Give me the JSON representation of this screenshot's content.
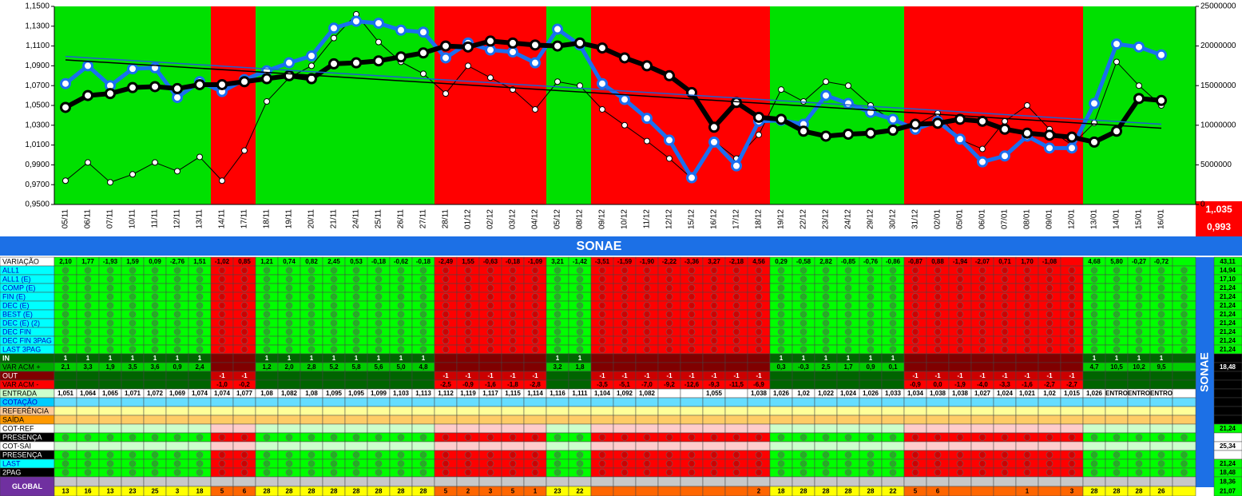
{
  "chart_data": {
    "type": "line",
    "categories": [
      "05/11",
      "06/11",
      "07/11",
      "10/11",
      "11/11",
      "12/11",
      "13/11",
      "14/11",
      "17/11",
      "18/11",
      "19/11",
      "20/11",
      "21/11",
      "24/11",
      "25/11",
      "26/11",
      "27/11",
      "28/11",
      "01/12",
      "02/12",
      "03/12",
      "04/12",
      "05/12",
      "08/12",
      "09/12",
      "10/12",
      "11/12",
      "12/12",
      "15/12",
      "16/12",
      "17/12",
      "18/12",
      "19/12",
      "22/12",
      "23/12",
      "24/12",
      "29/12",
      "30/12",
      "31/12",
      "02/01",
      "05/01",
      "06/01",
      "07/01",
      "08/01",
      "09/01",
      "12/01",
      "13/01",
      "14/01",
      "15/01",
      "16/01"
    ],
    "ylim": [
      0.95,
      1.15
    ],
    "yticks": [
      {
        "value": 0.95,
        "label": "0,9500"
      },
      {
        "value": 0.97,
        "label": "0,9700"
      },
      {
        "value": 0.99,
        "label": "0,9900"
      },
      {
        "value": 1.01,
        "label": "1,0100"
      },
      {
        "value": 1.03,
        "label": "1,0300"
      },
      {
        "value": 1.05,
        "label": "1,0500"
      },
      {
        "value": 1.07,
        "label": "1,0700"
      },
      {
        "value": 1.09,
        "label": "1,0900"
      },
      {
        "value": 1.11,
        "label": "1,1100"
      },
      {
        "value": 1.13,
        "label": "1,1300"
      },
      {
        "value": 1.15,
        "label": "1,1500"
      }
    ],
    "y2lim": [
      0,
      25000000
    ],
    "y2ticks": [
      0,
      5000000,
      10000000,
      15000000,
      20000000,
      25000000
    ],
    "series": [
      {
        "color": "#000000",
        "axis": "y2",
        "line_width": 1,
        "marker_size": 3.5,
        "values": [
          3000000,
          5300000,
          2800000,
          3800000,
          5300000,
          4200000,
          6000000,
          3000000,
          6800000,
          13000000,
          16000000,
          17500000,
          21000000,
          24000000,
          20500000,
          18000000,
          16500000,
          14000000,
          17500000,
          16000000,
          14500000,
          12000000,
          15500000,
          15000000,
          12000000,
          10000000,
          8000000,
          5800000,
          3300000,
          8000000,
          5800000,
          8800000,
          14500000,
          13000000,
          15500000,
          15000000,
          12500000,
          10500000,
          10000000,
          11500000,
          8200000,
          7000000,
          10500000,
          12500000,
          9500000,
          7500000,
          10300000,
          18000000,
          15000000,
          12500000
        ]
      },
      {
        "color": "#1a6ff0",
        "axis": "y",
        "line_width": 5,
        "marker_size": 5.5,
        "values": [
          1.072,
          1.09,
          1.07,
          1.087,
          1.088,
          1.058,
          1.074,
          1.064,
          1.076,
          1.085,
          1.093,
          1.1,
          1.128,
          1.135,
          1.133,
          1.126,
          1.124,
          1.098,
          1.113,
          1.106,
          1.104,
          1.093,
          1.127,
          1.111,
          1.072,
          1.056,
          1.037,
          1.015,
          0.977,
          1.013,
          0.989,
          1.034,
          1.035,
          1.031,
          1.06,
          1.052,
          1.043,
          1.036,
          1.026,
          1.034,
          1.016,
          0.993,
          0.999,
          1.019,
          1.007,
          1.007,
          1.052,
          1.112,
          1.109,
          1.101
        ]
      },
      {
        "color": "#000000",
        "axis": "y",
        "line_width": 6,
        "marker_size": 5.5,
        "values": [
          1.048,
          1.06,
          1.062,
          1.068,
          1.069,
          1.067,
          1.071,
          1.071,
          1.074,
          1.077,
          1.08,
          1.077,
          1.092,
          1.093,
          1.095,
          1.099,
          1.103,
          1.11,
          1.109,
          1.115,
          1.113,
          1.111,
          1.11,
          1.113,
          1.108,
          1.098,
          1.09,
          1.08,
          1.063,
          1.028,
          1.053,
          1.038,
          1.036,
          1.024,
          1.019,
          1.021,
          1.022,
          1.025,
          1.031,
          1.032,
          1.036,
          1.034,
          1.026,
          1.022,
          1.02,
          1.018,
          1.013,
          1.024,
          1.057,
          1.055
        ]
      }
    ],
    "trendlines": [
      {
        "color": "#1f5fd0",
        "values": [
          1.0995,
          1.031
        ]
      },
      {
        "color": "#000000",
        "values": [
          1.096,
          1.027
        ]
      }
    ],
    "bands": [
      "G",
      "G",
      "G",
      "G",
      "G",
      "G",
      "G",
      "R",
      "R",
      "G",
      "G",
      "G",
      "G",
      "G",
      "G",
      "G",
      "G",
      "R",
      "R",
      "R",
      "R",
      "R",
      "G",
      "G",
      "R",
      "R",
      "R",
      "R",
      "R",
      "R",
      "R",
      "R",
      "G",
      "G",
      "G",
      "G",
      "G",
      "G",
      "R",
      "R",
      "R",
      "R",
      "R",
      "R",
      "R",
      "R",
      "G",
      "G",
      "G",
      "G"
    ],
    "band_colors": {
      "G": "#00e000",
      "R": "#ff0000"
    },
    "price_box": {
      "high": "1,.035",
      "low": "0,993"
    }
  },
  "table": {
    "title": "SONAE",
    "dot_colors": {
      "G": "#22b022",
      "R": "#d00000"
    },
    "rows": [
      {
        "label": "VARIAÇÃO",
        "kind": "text",
        "label_bg": "#ffffff",
        "label_color": "#000000",
        "text_color": "#000000",
        "cell_colors": {
          "G": "#00ff00",
          "R": "#ff0000"
        },
        "summary": "43,11",
        "summary_bg": "#00ff00",
        "cells": [
          "2,10",
          "1,77",
          "-1,93",
          "1,59",
          "0,09",
          "-2,76",
          "1,51",
          "-1,02",
          "0,85",
          "1,21",
          "0,74",
          "0,82",
          "2,45",
          "0,53",
          "-0,18",
          "-0,62",
          "-0,18",
          "-2,49",
          "1,55",
          "-0,63",
          "-0,18",
          "-1,09",
          "3,21",
          "-1,42",
          "-3,51",
          "-1,59",
          "-1,90",
          "-2,22",
          "-3,36",
          "3,27",
          "-2,18",
          "4,56",
          "0,29",
          "-0,58",
          "2,82",
          "-0,85",
          "-0,76",
          "-0,86",
          "-0,87",
          "0,88",
          "-1,94",
          "-2,07",
          "0,71",
          "1,70",
          "-1,08",
          null,
          "4,68",
          "5,80",
          "-0,27",
          "-0,72"
        ]
      },
      {
        "label": "ALL1",
        "kind": "dots",
        "label_bg": "#00ffff",
        "label_color": "#0000cc",
        "cell_colors": {
          "G": "#00ff00",
          "R": "#ff0000"
        },
        "summary": "14,94",
        "summary_bg": "#00ff00"
      },
      {
        "label": "ALL1 (E)",
        "kind": "dots",
        "label_bg": "#00ffff",
        "label_color": "#0000cc",
        "cell_colors": {
          "G": "#00ff00",
          "R": "#ff0000"
        },
        "summary": "17,10",
        "summary_bg": "#00ff00"
      },
      {
        "label": "COMP (E)",
        "kind": "dots",
        "label_bg": "#00ffff",
        "label_color": "#0000cc",
        "cell_colors": {
          "G": "#00ff00",
          "R": "#ff0000"
        },
        "summary": "21,24",
        "summary_bg": "#00ff00"
      },
      {
        "label": "FIN (E)",
        "kind": "dots",
        "label_bg": "#00ffff",
        "label_color": "#0000cc",
        "cell_colors": {
          "G": "#00ff00",
          "R": "#ff0000"
        },
        "summary": "21,24",
        "summary_bg": "#00ff00"
      },
      {
        "label": "DEC (E)",
        "kind": "dots",
        "label_bg": "#00ffff",
        "label_color": "#0000cc",
        "cell_colors": {
          "G": "#00ff00",
          "R": "#ff0000"
        },
        "summary": "21,24",
        "summary_bg": "#00ff00"
      },
      {
        "label": "BEST (E)",
        "kind": "dots",
        "label_bg": "#00ffff",
        "label_color": "#0000cc",
        "cell_colors": {
          "G": "#00ff00",
          "R": "#ff0000"
        },
        "summary": "21,24",
        "summary_bg": "#00ff00"
      },
      {
        "label": "DEC (E) (2)",
        "kind": "dots",
        "label_bg": "#00ffff",
        "label_color": "#0000cc",
        "cell_colors": {
          "G": "#00ff00",
          "R": "#ff0000"
        },
        "summary": "21,24",
        "summary_bg": "#00ff00"
      },
      {
        "label": "DEC FIN",
        "kind": "dots",
        "label_bg": "#00ffff",
        "label_color": "#0000cc",
        "cell_colors": {
          "G": "#00ff00",
          "R": "#ff0000"
        },
        "summary": "21,24",
        "summary_bg": "#00ff00"
      },
      {
        "label": "DEC FIN 3PAG",
        "kind": "dots",
        "label_bg": "#00ffff",
        "label_color": "#0000cc",
        "cell_colors": {
          "G": "#00ff00",
          "R": "#ff0000"
        },
        "summary": "21,24",
        "summary_bg": "#00ff00"
      },
      {
        "label": "LAST 3PAG",
        "kind": "dots",
        "label_bg": "#00ffff",
        "label_color": "#0000cc",
        "cell_colors": {
          "G": "#00ff00",
          "R": "#ff0000"
        },
        "summary": "21,24",
        "summary_bg": "#00ff00"
      },
      {
        "label": "IN",
        "kind": "text",
        "label_bg": "#006400",
        "label_color": "#ffffff",
        "text_color": "#ffffff",
        "cell_colors": {
          "G": "#006400",
          "R": "#800000"
        },
        "summary_bg": "#000000",
        "cells": [
          "1",
          "1",
          "1",
          "1",
          "1",
          "1",
          "1",
          null,
          null,
          "1",
          "1",
          "1",
          "1",
          "1",
          "1",
          "1",
          "1",
          null,
          null,
          null,
          null,
          null,
          "1",
          "1",
          null,
          null,
          null,
          null,
          null,
          null,
          null,
          null,
          "1",
          "1",
          "1",
          "1",
          "1",
          "1",
          null,
          null,
          null,
          null,
          null,
          null,
          null,
          null,
          "1",
          "1",
          "1",
          "1"
        ]
      },
      {
        "label": "VAR ACM +",
        "kind": "text",
        "label_bg": "#00aa00",
        "label_color": "#000000",
        "text_color": "#000000",
        "cell_colors": {
          "G": "#00cc00",
          "R": "#800000"
        },
        "summary": "18,48",
        "summary_bg": "#000000",
        "summary_color": "#ffffff",
        "cells": [
          "2,1",
          "3,3",
          "1,9",
          "3,5",
          "3,6",
          "0,9",
          "2,4",
          null,
          null,
          "1,2",
          "2,0",
          "2,8",
          "5,2",
          "5,8",
          "5,6",
          "5,0",
          "4,8",
          null,
          null,
          null,
          null,
          null,
          "3,2",
          "1,8",
          null,
          null,
          null,
          null,
          null,
          null,
          null,
          null,
          "0,3",
          "-0,3",
          "2,5",
          "1,7",
          "0,9",
          "0,1",
          null,
          null,
          null,
          null,
          null,
          null,
          null,
          null,
          "4,7",
          "10,5",
          "10,2",
          "9,5"
        ]
      },
      {
        "label": "OUT",
        "kind": "text",
        "label_bg": "#800000",
        "label_color": "#ffffff",
        "text_color": "#ffffff",
        "cell_colors": {
          "G": "#006400",
          "R": "#cc0000"
        },
        "summary_bg": "#000000",
        "cells": [
          null,
          null,
          null,
          null,
          null,
          null,
          null,
          "-1",
          "-1",
          null,
          null,
          null,
          null,
          null,
          null,
          null,
          null,
          "-1",
          "-1",
          "-1",
          "-1",
          "-1",
          null,
          null,
          "-1",
          "-1",
          "-1",
          "-1",
          "-1",
          "-1",
          "-1",
          "-1",
          null,
          null,
          null,
          null,
          null,
          null,
          "-1",
          "-1",
          "-1",
          "-1",
          "-1",
          "-1",
          "-1",
          "-1",
          null,
          null,
          null,
          null
        ]
      },
      {
        "label": "VAR ACM -",
        "kind": "text",
        "label_bg": "#ff0000",
        "label_color": "#000000",
        "text_color": "#000000",
        "cell_colors": {
          "G": "#006400",
          "R": "#ff0000"
        },
        "summary_bg": "#000000",
        "cells": [
          null,
          null,
          null,
          null,
          null,
          null,
          null,
          "-1,0",
          "-0,2",
          null,
          null,
          null,
          null,
          null,
          null,
          null,
          null,
          "-2,5",
          "-0,9",
          "-1,6",
          "-1,8",
          "-2,8",
          null,
          null,
          "-3,5",
          "-5,1",
          "-7,0",
          "-9,2",
          "-12,6",
          "-9,3",
          "-11,5",
          "-6,9",
          null,
          null,
          null,
          null,
          null,
          null,
          "-0,9",
          "0,0",
          "-1,9",
          "-4,0",
          "-3,3",
          "-1,6",
          "-2,7",
          "-2,7",
          null,
          null,
          null,
          null
        ]
      },
      {
        "label": "ENTRADA",
        "kind": "text",
        "label_bg": "#ccffcc",
        "label_color": "#000000",
        "text_color": "#000000",
        "cell_colors": {
          "G": "#ffffff",
          "R": "#ffffff"
        },
        "summary_bg": "#000000",
        "cells": [
          "1,051",
          "1,064",
          "1,065",
          "1,071",
          "1,072",
          "1,069",
          "1,074",
          "1,074",
          "1,077",
          "1,08",
          "1,082",
          "1,08",
          "1,095",
          "1,095",
          "1,099",
          "1,103",
          "1,113",
          "1,112",
          "1,119",
          "1,117",
          "1,115",
          "1,114",
          "1,116",
          "1,111",
          "1,104",
          "1,092",
          "1,082",
          null,
          null,
          "1,055",
          null,
          "1,038",
          "1,026",
          "1,02",
          "1,022",
          "1,024",
          "1,026",
          "1,033",
          "1,034",
          "1,038",
          "1,038",
          "1,027",
          "1,024",
          "1,021",
          "1,02",
          "1,015",
          "1,026",
          "ENTRO",
          "ENTRO",
          "ENTRO"
        ]
      },
      {
        "label": "COTAÇÃO",
        "kind": "blank",
        "label_bg": "#00ccff",
        "label_color": "#0000cc",
        "cell_colors": {
          "G": "#66ddff",
          "R": "#66ddff"
        },
        "summary_bg": "#000000"
      },
      {
        "label": "REFERÊNCIA",
        "kind": "blank",
        "label_bg": "#ffcc99",
        "label_color": "#000000",
        "cell_colors": {
          "G": "#ffff99",
          "R": "#ffff99"
        },
        "summary_bg": "#000000"
      },
      {
        "label": "SAÍDA",
        "kind": "blank",
        "label_bg": "#ff9900",
        "label_color": "#000000",
        "cell_colors": {
          "G": "#ffcc66",
          "R": "#ffcc66"
        },
        "summary_bg": "#000000"
      },
      {
        "label": "COT-REF",
        "kind": "blank",
        "label_bg": "#ffffff",
        "label_color": "#000000",
        "cell_colors": {
          "G": "#ccffcc",
          "R": "#ffcccc"
        },
        "summary": "21,24",
        "summary_bg": "#00ff00"
      },
      {
        "label": "PRESENÇA",
        "kind": "dots",
        "label_bg": "#000000",
        "label_color": "#ffffff",
        "cell_colors": {
          "G": "#00ff00",
          "R": "#ff0000"
        },
        "summary_bg": "#ffffff"
      },
      {
        "label": "COT-SAI",
        "kind": "blank",
        "label_bg": "#ffffff",
        "label_color": "#000000",
        "cell_colors": {
          "G": "#ccffcc",
          "R": "#ffcccc"
        },
        "summary": "25,34",
        "summary_bg": "#ffffff"
      },
      {
        "label": "PRESENÇA",
        "kind": "dots",
        "label_bg": "#000000",
        "label_color": "#ffffff",
        "cell_colors": {
          "G": "#00ff00",
          "R": "#ff0000"
        },
        "summary_bg": "#ffffff"
      },
      {
        "label": "LAST",
        "kind": "dots",
        "label_bg": "#00ffff",
        "label_color": "#0000cc",
        "cell_colors": {
          "G": "#00ff00",
          "R": "#ff0000"
        },
        "summary": "21,24",
        "summary_bg": "#00ff00"
      },
      {
        "label": "2PAG",
        "kind": "dots",
        "label_bg": "#000000",
        "label_color": "#ffffff",
        "cell_colors": {
          "G": "#00ff00",
          "R": "#ff0000"
        },
        "summary": "18,48",
        "summary_bg": "#00ff00"
      },
      {
        "label": "GLOBAL",
        "kind": "text",
        "label_bg": "#7030a0",
        "label_color": "#ffffff",
        "text_color": "#000000",
        "cell_colors": {
          "G": "#ffff00",
          "R": "#ff6600"
        },
        "summary": [
          "18,36",
          "21,07"
        ],
        "summary_bg": "#00ff00",
        "cells": [
          "13",
          "16",
          "13",
          "23",
          "25",
          "3",
          "18",
          "5",
          "6",
          "28",
          "28",
          "28",
          "28",
          "28",
          "28",
          "28",
          "28",
          "5",
          "2",
          "3",
          "5",
          "1",
          "23",
          "22",
          null,
          null,
          null,
          null,
          null,
          null,
          null,
          "2",
          "18",
          "28",
          "28",
          "28",
          "28",
          "22",
          "5",
          "6",
          null,
          null,
          null,
          "1",
          null,
          "3",
          "28",
          "28",
          "28",
          "26"
        ]
      }
    ]
  }
}
